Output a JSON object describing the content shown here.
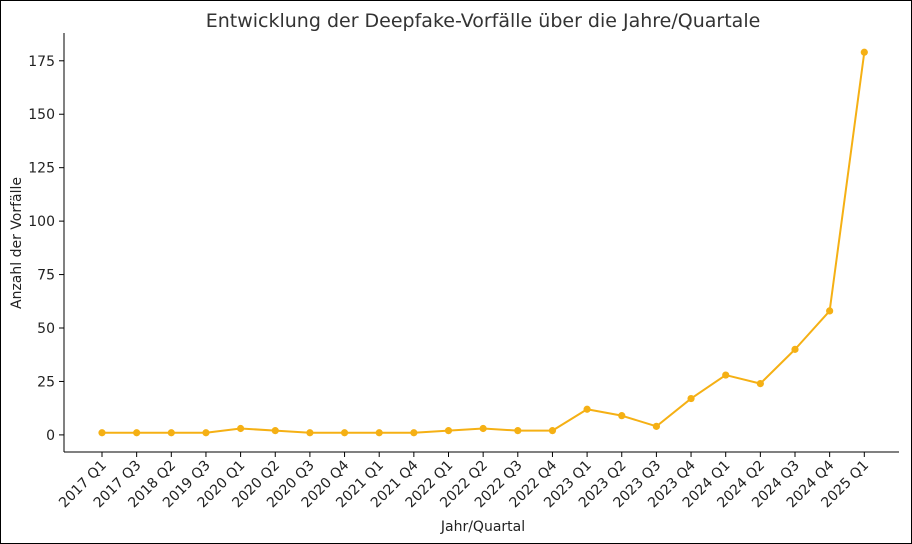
{
  "chart_data": {
    "type": "line",
    "title": "Entwicklung der Deepfake-Vorfälle über die Jahre/Quartale",
    "xlabel": "Jahr/Quartal",
    "ylabel": "Anzahl der Vorfälle",
    "categories": [
      "2017 Q1",
      "2017 Q3",
      "2018 Q2",
      "2019 Q3",
      "2020 Q1",
      "2020 Q2",
      "2020 Q3",
      "2020 Q4",
      "2021 Q1",
      "2021 Q4",
      "2022 Q1",
      "2022 Q2",
      "2022 Q3",
      "2022 Q4",
      "2023 Q1",
      "2023 Q2",
      "2023 Q3",
      "2023 Q4",
      "2024 Q1",
      "2024 Q2",
      "2024 Q3",
      "2024 Q4",
      "2025 Q1"
    ],
    "series": [
      {
        "values": [
          1,
          1,
          1,
          1,
          3,
          2,
          1,
          1,
          1,
          1,
          2,
          3,
          2,
          2,
          12,
          9,
          4,
          17,
          28,
          24,
          40,
          58,
          179
        ]
      }
    ],
    "ylim": [
      -8,
      188
    ],
    "yticks": [
      0,
      25,
      50,
      75,
      100,
      125,
      150,
      175
    ],
    "grid": false,
    "color": "#F5B014"
  }
}
